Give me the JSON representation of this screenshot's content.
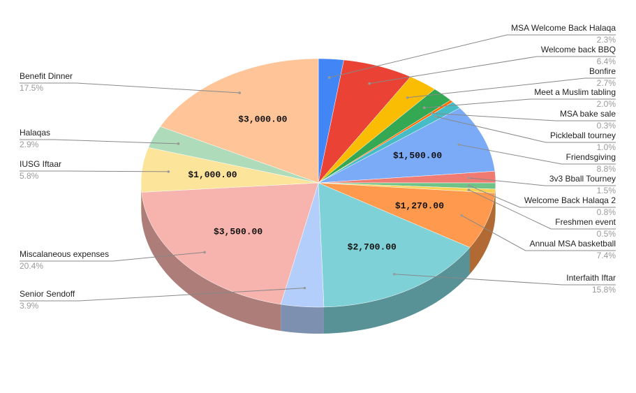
{
  "chart_data": {
    "type": "pie3d",
    "categories": [
      "MSA Welcome Back Halaqa",
      "Welcome back BBQ",
      "Bonfire",
      "Meet a Muslim tabling",
      "MSA bake sale",
      "Pickleball tourney",
      "Friendsgiving",
      "3v3 Bball Tourney",
      "Welcome Back Halaqa 2",
      "Freshmen event",
      "Annual MSA basketball",
      "Interfaith Iftar",
      "Senior Sendoff",
      "Miscalaneous expenses",
      "IUSG Iftaar",
      "Halaqas",
      "Benefit Dinner"
    ],
    "values": [
      2.3,
      6.4,
      2.7,
      2.0,
      0.3,
      1.0,
      8.8,
      1.5,
      0.8,
      0.5,
      7.4,
      15.8,
      3.9,
      20.4,
      5.8,
      2.9,
      17.5
    ],
    "value_labels": [
      "2.3%",
      "6.4%",
      "2.7%",
      "2.0%",
      "0.3%",
      "1.0%",
      "8.8%",
      "1.5%",
      "0.8%",
      "0.5%",
      "7.4%",
      "15.8%",
      "3.9%",
      "20.4%",
      "5.8%",
      "2.9%",
      "17.5%"
    ],
    "amount_labels": [
      null,
      null,
      null,
      null,
      null,
      null,
      "$1,500.00",
      null,
      null,
      null,
      "$1,270.00",
      "$2,700.00",
      null,
      "$3,500.00",
      "$1,000.00",
      null,
      "$3,000.00"
    ],
    "colors": [
      "#4285f4",
      "#ea4335",
      "#fbbc04",
      "#34a853",
      "#ff6d01",
      "#46bdc6",
      "#7baaf7",
      "#f07b72",
      "#71c287",
      "#fcd04f",
      "#ff994d",
      "#7ed1d7",
      "#b3cefb",
      "#f7b4ae",
      "#fde49b",
      "#aedcba",
      "#ffc599"
    ]
  }
}
